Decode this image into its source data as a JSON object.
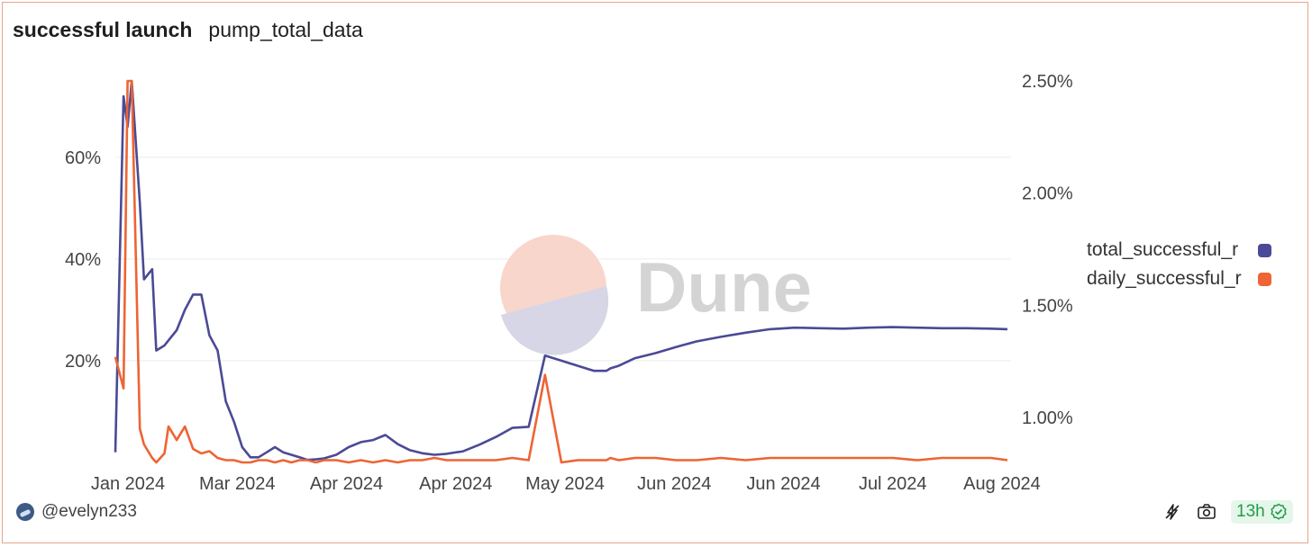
{
  "header": {
    "title": "successful launch",
    "subtitle": "pump_total_data"
  },
  "watermark": {
    "text": "Dune"
  },
  "footer": {
    "username": "@evelyn233",
    "refresh_label": "13h"
  },
  "colors": {
    "total": "#4a4a96",
    "daily": "#ee6433",
    "frame": "#e8a48c"
  },
  "icons": {
    "avatar": "user-avatar",
    "share": "lightning-share-icon",
    "screenshot": "camera-icon",
    "refresh": "check-circle-icon"
  },
  "chart_data": {
    "type": "line",
    "title": "successful launch",
    "x": [
      "2024-01-01",
      "2024-01-03",
      "2024-01-04",
      "2024-01-05",
      "2024-01-07",
      "2024-01-08",
      "2024-01-10",
      "2024-01-11",
      "2024-01-13",
      "2024-01-14",
      "2024-01-16",
      "2024-01-18",
      "2024-01-20",
      "2024-01-22",
      "2024-01-24",
      "2024-01-26",
      "2024-01-28",
      "2024-01-30",
      "2024-02-01",
      "2024-02-03",
      "2024-02-05",
      "2024-02-07",
      "2024-02-09",
      "2024-02-11",
      "2024-02-13",
      "2024-02-15",
      "2024-02-17",
      "2024-02-19",
      "2024-02-21",
      "2024-02-24",
      "2024-02-27",
      "2024-03-01",
      "2024-03-04",
      "2024-03-07",
      "2024-03-10",
      "2024-03-13",
      "2024-03-16",
      "2024-03-19",
      "2024-03-22",
      "2024-03-26",
      "2024-03-30",
      "2024-04-03",
      "2024-04-07",
      "2024-04-11",
      "2024-04-15",
      "2024-04-19",
      "2024-04-23",
      "2024-04-27",
      "2024-04-30",
      "2024-05-01",
      "2024-05-03",
      "2024-05-07",
      "2024-05-12",
      "2024-05-17",
      "2024-05-22",
      "2024-05-28",
      "2024-06-03",
      "2024-06-09",
      "2024-06-15",
      "2024-06-21",
      "2024-06-27",
      "2024-07-03",
      "2024-07-09",
      "2024-07-15",
      "2024-07-21",
      "2024-07-27",
      "2024-08-02",
      "2024-08-06"
    ],
    "series": [
      {
        "name": "total_successful_r",
        "axis": "left",
        "values": [
          2,
          72,
          66,
          75,
          51,
          36,
          38,
          22,
          23,
          24,
          26,
          30,
          33,
          33,
          25,
          22,
          12,
          8,
          3,
          1,
          1,
          2,
          3,
          2,
          1.5,
          1,
          0.5,
          0.6,
          0.8,
          1.5,
          3,
          4,
          4.4,
          5.4,
          3.6,
          2.4,
          1.8,
          1.5,
          1.7,
          2.2,
          3.5,
          5,
          6.8,
          7,
          21,
          20,
          19,
          18,
          18,
          18.5,
          19,
          20.5,
          21.5,
          22.7,
          23.8,
          24.7,
          25.5,
          26.2,
          26.5,
          26.4,
          26.3,
          26.5,
          26.6,
          26.5,
          26.4,
          26.4,
          26.3,
          26.2
        ]
      },
      {
        "name": "daily_successful_r",
        "axis": "right",
        "values": [
          1.27,
          1.13,
          2.5,
          2.5,
          0.95,
          0.88,
          0.82,
          0.8,
          0.84,
          0.96,
          0.9,
          0.96,
          0.86,
          0.84,
          0.85,
          0.82,
          0.81,
          0.81,
          0.8,
          0.8,
          0.81,
          0.81,
          0.8,
          0.81,
          0.8,
          0.81,
          0.81,
          0.8,
          0.81,
          0.81,
          0.8,
          0.81,
          0.8,
          0.81,
          0.8,
          0.81,
          0.81,
          0.82,
          0.81,
          0.81,
          0.81,
          0.81,
          0.82,
          0.81,
          1.19,
          0.8,
          0.81,
          0.81,
          0.81,
          0.82,
          0.81,
          0.82,
          0.82,
          0.81,
          0.81,
          0.82,
          0.81,
          0.82,
          0.82,
          0.82,
          0.82,
          0.82,
          0.82,
          0.81,
          0.82,
          0.82,
          0.82,
          0.81
        ]
      }
    ],
    "xticks": [
      "Jan 2024",
      "Mar 2024",
      "Apr 2024",
      "Apr 2024",
      "May 2024",
      "Jun 2024",
      "Jun 2024",
      "Jul 2024",
      "Aug 2024"
    ],
    "y_left": {
      "ticks": [
        "20%",
        "40%",
        "60%"
      ],
      "values": [
        20,
        40,
        60
      ],
      "range": [
        0,
        75
      ]
    },
    "y_right": {
      "ticks": [
        "1.00%",
        "1.50%",
        "2.00%",
        "2.50%"
      ],
      "values": [
        1.0,
        1.5,
        2.0,
        2.5
      ],
      "range": [
        0.8,
        2.5
      ]
    },
    "xlabel": "",
    "ylabel": "",
    "grid": true,
    "legend": "right"
  }
}
